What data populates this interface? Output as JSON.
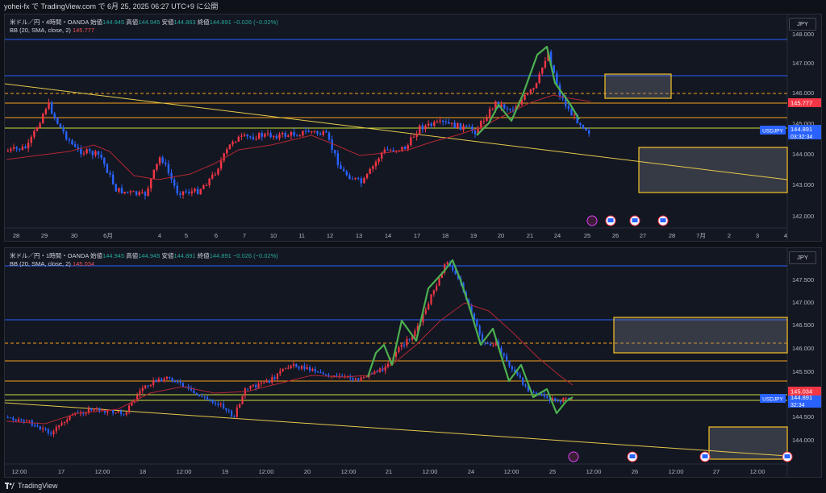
{
  "topbar": {
    "title": "yohei-fx で TradingView.com で 6月 25, 2025 06:27 UTC+9 に公開"
  },
  "footer": {
    "brand": "TradingView"
  },
  "colors": {
    "up": "#f23645",
    "down": "#2962ff",
    "bb": "#b22833",
    "wave": "#4caf50",
    "trend": "#e5c94b",
    "orange": "#f7a21b",
    "blue": "#2962ff",
    "green": "#cddc39"
  },
  "panes": [
    {
      "symbol_title": "米ドル／円・4時間・OANDA",
      "ohlc": {
        "open_label": "始値",
        "open": "144.945",
        "high_label": "高値",
        "high": "144.945",
        "low_label": "安値",
        "low": "144.863",
        "close_label": "終値",
        "close": "144.891",
        "change": "−0.026 (−0.02%)"
      },
      "bb_label": "BB (20, SMA, close, 2)",
      "bb_value": "145.777",
      "currency": "JPY",
      "price_ticks": [
        "148.000",
        "147.000",
        "146.000",
        "145.000",
        "144.000",
        "143.000",
        "142.000"
      ],
      "x_ticks": [
        "28",
        "29",
        "30",
        "6月",
        "4",
        "5",
        "6",
        "7",
        "10",
        "11",
        "12",
        "13",
        "14",
        "17",
        "18",
        "19",
        "20",
        "21",
        "24",
        "25",
        "26",
        "27",
        "28",
        "7月",
        "2",
        "3",
        "4"
      ],
      "price_label": {
        "symbol": "USDJPY",
        "price": "144.891",
        "countdown": "03:32:34"
      },
      "bb_price": "145.777"
    },
    {
      "symbol_title": "米ドル／円・1時間・OANDA",
      "ohlc": {
        "open_label": "始値",
        "open": "144.945",
        "high_label": "高値",
        "high": "144.945",
        "low_label": "安値",
        "low": "144.891",
        "close_label": "終値",
        "close": "144.891",
        "change": "−0.026 (−0.02%)"
      },
      "bb_label": "BB (20, SMA, close, 2)",
      "bb_value": "145.034",
      "currency": "JPY",
      "price_ticks": [
        "147.500",
        "147.000",
        "146.500",
        "146.000",
        "145.500",
        "144.500",
        "144.000"
      ],
      "x_ticks": [
        "12:00",
        "17",
        "12:00",
        "18",
        "12:00",
        "19",
        "12:00",
        "20",
        "12:00",
        "21",
        "12:00",
        "24",
        "12:00",
        "25",
        "12:00",
        "26",
        "12:00",
        "27",
        "12:00"
      ],
      "price_label": {
        "symbol": "USDJPY",
        "price": "144.891",
        "countdown": "32:34"
      },
      "bb_price": "145.034"
    }
  ]
}
